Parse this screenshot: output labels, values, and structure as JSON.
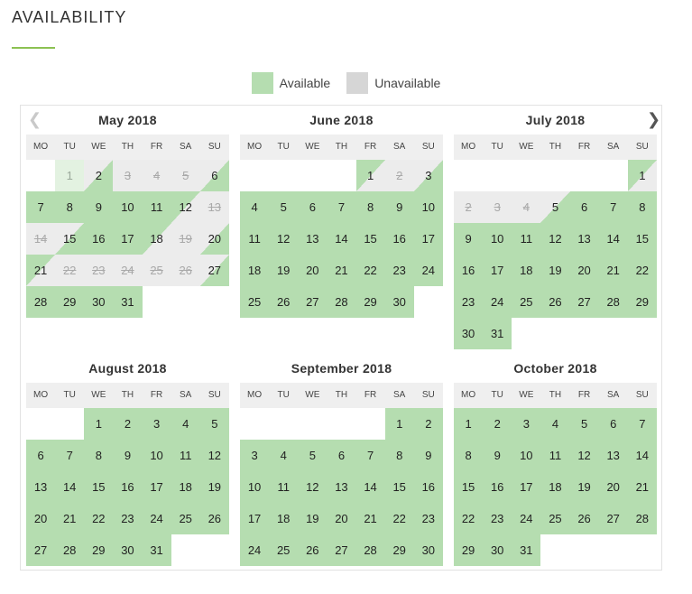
{
  "header": {
    "title": "AVAILABILITY"
  },
  "legend": {
    "available": "Available",
    "unavailable": "Unavailable"
  },
  "colors": {
    "available": "#b5ddb0",
    "unavailable": "#d6d6d6",
    "accent": "#8cc152"
  },
  "nav": {
    "prev_icon": "chevron-left-icon",
    "next_icon": "chevron-right-icon"
  },
  "weekdays": [
    "MO",
    "TU",
    "WE",
    "TH",
    "FR",
    "SA",
    "SU"
  ],
  "months": [
    {
      "title": "May 2018",
      "offset": 1,
      "days": [
        {
          "d": "1",
          "s": "past"
        },
        {
          "d": "2",
          "s": "ci"
        },
        {
          "d": "3",
          "s": "un"
        },
        {
          "d": "4",
          "s": "un"
        },
        {
          "d": "5",
          "s": "un"
        },
        {
          "d": "6",
          "s": "ci"
        },
        {
          "d": "7",
          "s": "av"
        },
        {
          "d": "8",
          "s": "av"
        },
        {
          "d": "9",
          "s": "av"
        },
        {
          "d": "10",
          "s": "av"
        },
        {
          "d": "11",
          "s": "av"
        },
        {
          "d": "12",
          "s": "co"
        },
        {
          "d": "13",
          "s": "un"
        },
        {
          "d": "14",
          "s": "un"
        },
        {
          "d": "15",
          "s": "ci"
        },
        {
          "d": "16",
          "s": "av"
        },
        {
          "d": "17",
          "s": "av"
        },
        {
          "d": "18",
          "s": "co"
        },
        {
          "d": "19",
          "s": "un"
        },
        {
          "d": "20",
          "s": "ci"
        },
        {
          "d": "21",
          "s": "co"
        },
        {
          "d": "22",
          "s": "un"
        },
        {
          "d": "23",
          "s": "un"
        },
        {
          "d": "24",
          "s": "un"
        },
        {
          "d": "25",
          "s": "un"
        },
        {
          "d": "26",
          "s": "un"
        },
        {
          "d": "27",
          "s": "ci"
        },
        {
          "d": "28",
          "s": "av"
        },
        {
          "d": "29",
          "s": "av"
        },
        {
          "d": "30",
          "s": "av"
        },
        {
          "d": "31",
          "s": "av"
        }
      ]
    },
    {
      "title": "June 2018",
      "offset": 4,
      "days": [
        {
          "d": "1",
          "s": "co"
        },
        {
          "d": "2",
          "s": "un"
        },
        {
          "d": "3",
          "s": "ci"
        },
        {
          "d": "4",
          "s": "av"
        },
        {
          "d": "5",
          "s": "av"
        },
        {
          "d": "6",
          "s": "av"
        },
        {
          "d": "7",
          "s": "av"
        },
        {
          "d": "8",
          "s": "av"
        },
        {
          "d": "9",
          "s": "av"
        },
        {
          "d": "10",
          "s": "av"
        },
        {
          "d": "11",
          "s": "av"
        },
        {
          "d": "12",
          "s": "av"
        },
        {
          "d": "13",
          "s": "av"
        },
        {
          "d": "14",
          "s": "av"
        },
        {
          "d": "15",
          "s": "av"
        },
        {
          "d": "16",
          "s": "av"
        },
        {
          "d": "17",
          "s": "av"
        },
        {
          "d": "18",
          "s": "av"
        },
        {
          "d": "19",
          "s": "av"
        },
        {
          "d": "20",
          "s": "av"
        },
        {
          "d": "21",
          "s": "av"
        },
        {
          "d": "22",
          "s": "av"
        },
        {
          "d": "23",
          "s": "av"
        },
        {
          "d": "24",
          "s": "av"
        },
        {
          "d": "25",
          "s": "av"
        },
        {
          "d": "26",
          "s": "av"
        },
        {
          "d": "27",
          "s": "av"
        },
        {
          "d": "28",
          "s": "av"
        },
        {
          "d": "29",
          "s": "av"
        },
        {
          "d": "30",
          "s": "av"
        }
      ]
    },
    {
      "title": "July 2018",
      "offset": 6,
      "days": [
        {
          "d": "1",
          "s": "co"
        },
        {
          "d": "2",
          "s": "un"
        },
        {
          "d": "3",
          "s": "un"
        },
        {
          "d": "4",
          "s": "un"
        },
        {
          "d": "5",
          "s": "ci"
        },
        {
          "d": "6",
          "s": "av"
        },
        {
          "d": "7",
          "s": "av"
        },
        {
          "d": "8",
          "s": "av"
        },
        {
          "d": "9",
          "s": "av"
        },
        {
          "d": "10",
          "s": "av"
        },
        {
          "d": "11",
          "s": "av"
        },
        {
          "d": "12",
          "s": "av"
        },
        {
          "d": "13",
          "s": "av"
        },
        {
          "d": "14",
          "s": "av"
        },
        {
          "d": "15",
          "s": "av"
        },
        {
          "d": "16",
          "s": "av"
        },
        {
          "d": "17",
          "s": "av"
        },
        {
          "d": "18",
          "s": "av"
        },
        {
          "d": "19",
          "s": "av"
        },
        {
          "d": "20",
          "s": "av"
        },
        {
          "d": "21",
          "s": "av"
        },
        {
          "d": "22",
          "s": "av"
        },
        {
          "d": "23",
          "s": "av"
        },
        {
          "d": "24",
          "s": "av"
        },
        {
          "d": "25",
          "s": "av"
        },
        {
          "d": "26",
          "s": "av"
        },
        {
          "d": "27",
          "s": "av"
        },
        {
          "d": "28",
          "s": "av"
        },
        {
          "d": "29",
          "s": "av"
        },
        {
          "d": "30",
          "s": "av"
        },
        {
          "d": "31",
          "s": "av"
        }
      ]
    },
    {
      "title": "August 2018",
      "offset": 2,
      "days": [
        {
          "d": "1",
          "s": "av"
        },
        {
          "d": "2",
          "s": "av"
        },
        {
          "d": "3",
          "s": "av"
        },
        {
          "d": "4",
          "s": "av"
        },
        {
          "d": "5",
          "s": "av"
        },
        {
          "d": "6",
          "s": "av"
        },
        {
          "d": "7",
          "s": "av"
        },
        {
          "d": "8",
          "s": "av"
        },
        {
          "d": "9",
          "s": "av"
        },
        {
          "d": "10",
          "s": "av"
        },
        {
          "d": "11",
          "s": "av"
        },
        {
          "d": "12",
          "s": "av"
        },
        {
          "d": "13",
          "s": "av"
        },
        {
          "d": "14",
          "s": "av"
        },
        {
          "d": "15",
          "s": "av"
        },
        {
          "d": "16",
          "s": "av"
        },
        {
          "d": "17",
          "s": "av"
        },
        {
          "d": "18",
          "s": "av"
        },
        {
          "d": "19",
          "s": "av"
        },
        {
          "d": "20",
          "s": "av"
        },
        {
          "d": "21",
          "s": "av"
        },
        {
          "d": "22",
          "s": "av"
        },
        {
          "d": "23",
          "s": "av"
        },
        {
          "d": "24",
          "s": "av"
        },
        {
          "d": "25",
          "s": "av"
        },
        {
          "d": "26",
          "s": "av"
        },
        {
          "d": "27",
          "s": "av"
        },
        {
          "d": "28",
          "s": "av"
        },
        {
          "d": "29",
          "s": "av"
        },
        {
          "d": "30",
          "s": "av"
        },
        {
          "d": "31",
          "s": "av"
        }
      ]
    },
    {
      "title": "September 2018",
      "offset": 5,
      "days": [
        {
          "d": "1",
          "s": "av"
        },
        {
          "d": "2",
          "s": "av"
        },
        {
          "d": "3",
          "s": "av"
        },
        {
          "d": "4",
          "s": "av"
        },
        {
          "d": "5",
          "s": "av"
        },
        {
          "d": "6",
          "s": "av"
        },
        {
          "d": "7",
          "s": "av"
        },
        {
          "d": "8",
          "s": "av"
        },
        {
          "d": "9",
          "s": "av"
        },
        {
          "d": "10",
          "s": "av"
        },
        {
          "d": "11",
          "s": "av"
        },
        {
          "d": "12",
          "s": "av"
        },
        {
          "d": "13",
          "s": "av"
        },
        {
          "d": "14",
          "s": "av"
        },
        {
          "d": "15",
          "s": "av"
        },
        {
          "d": "16",
          "s": "av"
        },
        {
          "d": "17",
          "s": "av"
        },
        {
          "d": "18",
          "s": "av"
        },
        {
          "d": "19",
          "s": "av"
        },
        {
          "d": "20",
          "s": "av"
        },
        {
          "d": "21",
          "s": "av"
        },
        {
          "d": "22",
          "s": "av"
        },
        {
          "d": "23",
          "s": "av"
        },
        {
          "d": "24",
          "s": "av"
        },
        {
          "d": "25",
          "s": "av"
        },
        {
          "d": "26",
          "s": "av"
        },
        {
          "d": "27",
          "s": "av"
        },
        {
          "d": "28",
          "s": "av"
        },
        {
          "d": "29",
          "s": "av"
        },
        {
          "d": "30",
          "s": "av"
        }
      ]
    },
    {
      "title": "October 2018",
      "offset": 0,
      "days": [
        {
          "d": "1",
          "s": "av"
        },
        {
          "d": "2",
          "s": "av"
        },
        {
          "d": "3",
          "s": "av"
        },
        {
          "d": "4",
          "s": "av"
        },
        {
          "d": "5",
          "s": "av"
        },
        {
          "d": "6",
          "s": "av"
        },
        {
          "d": "7",
          "s": "av"
        },
        {
          "d": "8",
          "s": "av"
        },
        {
          "d": "9",
          "s": "av"
        },
        {
          "d": "10",
          "s": "av"
        },
        {
          "d": "11",
          "s": "av"
        },
        {
          "d": "12",
          "s": "av"
        },
        {
          "d": "13",
          "s": "av"
        },
        {
          "d": "14",
          "s": "av"
        },
        {
          "d": "15",
          "s": "av"
        },
        {
          "d": "16",
          "s": "av"
        },
        {
          "d": "17",
          "s": "av"
        },
        {
          "d": "18",
          "s": "av"
        },
        {
          "d": "19",
          "s": "av"
        },
        {
          "d": "20",
          "s": "av"
        },
        {
          "d": "21",
          "s": "av"
        },
        {
          "d": "22",
          "s": "av"
        },
        {
          "d": "23",
          "s": "av"
        },
        {
          "d": "24",
          "s": "av"
        },
        {
          "d": "25",
          "s": "av"
        },
        {
          "d": "26",
          "s": "av"
        },
        {
          "d": "27",
          "s": "av"
        },
        {
          "d": "28",
          "s": "av"
        },
        {
          "d": "29",
          "s": "av"
        },
        {
          "d": "30",
          "s": "av"
        },
        {
          "d": "31",
          "s": "av"
        }
      ]
    }
  ]
}
